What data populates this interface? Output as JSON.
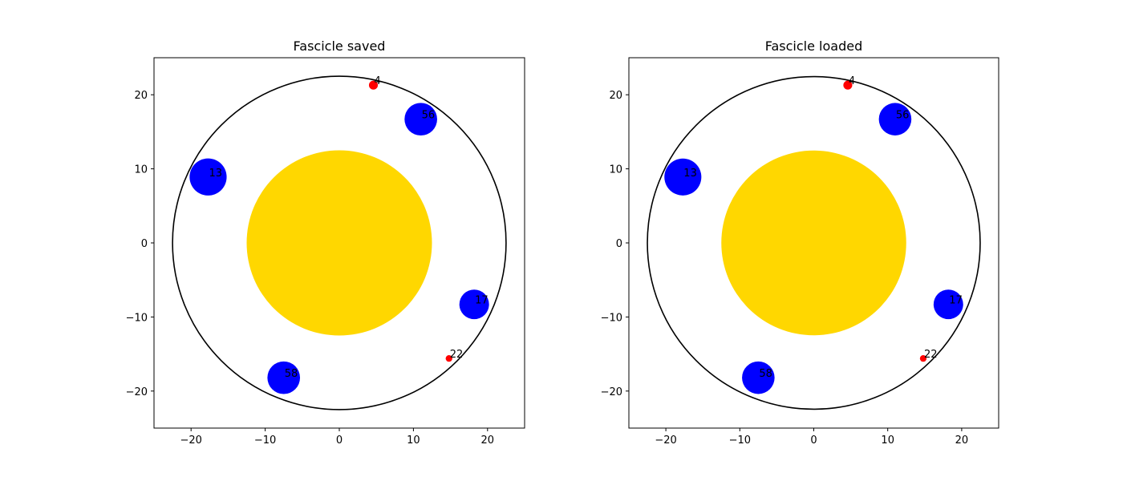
{
  "colors": {
    "nerve": "#ffd700",
    "large_fascicle": "#0000ff",
    "small_fascicle": "#ff0000",
    "boundary": "#000000",
    "background": "#ffffff"
  },
  "chart_data": [
    {
      "type": "scatter",
      "title": "Fascicle saved",
      "xlabel": "",
      "ylabel": "",
      "xlim": [
        -25,
        25
      ],
      "ylim": [
        -25,
        25
      ],
      "xticks": [
        -20,
        -10,
        0,
        10,
        20
      ],
      "yticks": [
        -20,
        -10,
        0,
        10,
        20
      ],
      "xtick_labels": [
        "−20",
        "−10",
        "0",
        "10",
        "20"
      ],
      "ytick_labels": [
        "−20",
        "−10",
        "0",
        "10",
        "20"
      ],
      "grid": false,
      "legend": "none",
      "boundary_circle": {
        "cx": 0,
        "cy": 0,
        "r": 22.5
      },
      "core_circle": {
        "cx": 0,
        "cy": 0,
        "r": 12.5
      },
      "fascicles": [
        {
          "label": "4",
          "x": 4.6,
          "y": 21.3,
          "r": 0.6,
          "kind": "small"
        },
        {
          "label": "56",
          "x": 11.0,
          "y": 16.7,
          "r": 2.2,
          "kind": "large"
        },
        {
          "label": "13",
          "x": -17.7,
          "y": 8.9,
          "r": 2.5,
          "kind": "large"
        },
        {
          "label": "17",
          "x": 18.2,
          "y": -8.3,
          "r": 2.0,
          "kind": "large"
        },
        {
          "label": "22",
          "x": 14.8,
          "y": -15.6,
          "r": 0.45,
          "kind": "small"
        },
        {
          "label": "58",
          "x": -7.5,
          "y": -18.2,
          "r": 2.2,
          "kind": "large"
        }
      ]
    },
    {
      "type": "scatter",
      "title": "Fascicle loaded",
      "xlabel": "",
      "ylabel": "",
      "xlim": [
        -25,
        25
      ],
      "ylim": [
        -25,
        25
      ],
      "xticks": [
        -20,
        -10,
        0,
        10,
        20
      ],
      "yticks": [
        -20,
        -10,
        0,
        10,
        20
      ],
      "xtick_labels": [
        "−20",
        "−10",
        "0",
        "10",
        "20"
      ],
      "ytick_labels": [
        "−20",
        "−10",
        "0",
        "10",
        "20"
      ],
      "grid": false,
      "legend": "none",
      "boundary_circle": {
        "cx": 0,
        "cy": 0,
        "r": 22.5
      },
      "core_circle": {
        "cx": 0,
        "cy": 0,
        "r": 12.5
      },
      "fascicles": [
        {
          "label": "4",
          "x": 4.6,
          "y": 21.3,
          "r": 0.6,
          "kind": "small"
        },
        {
          "label": "56",
          "x": 11.0,
          "y": 16.7,
          "r": 2.2,
          "kind": "large"
        },
        {
          "label": "13",
          "x": -17.7,
          "y": 8.9,
          "r": 2.5,
          "kind": "large"
        },
        {
          "label": "17",
          "x": 18.2,
          "y": -8.3,
          "r": 2.0,
          "kind": "large"
        },
        {
          "label": "22",
          "x": 14.8,
          "y": -15.6,
          "r": 0.45,
          "kind": "small"
        },
        {
          "label": "58",
          "x": -7.5,
          "y": -18.2,
          "r": 2.2,
          "kind": "large"
        }
      ]
    }
  ]
}
